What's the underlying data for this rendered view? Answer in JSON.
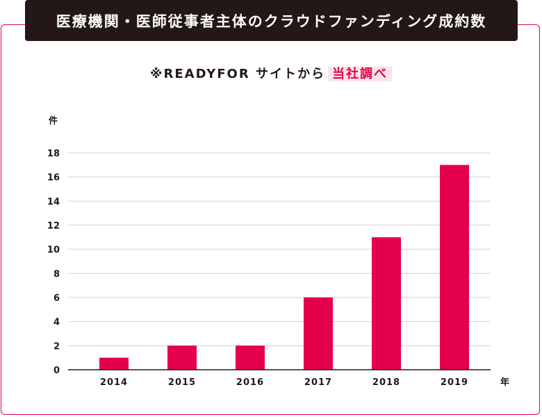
{
  "header": {
    "title": "医療機関・医師従事者主体のクラウドファンディング成約数",
    "source_prefix": "※READYFOR サイトから",
    "source_highlight": "当社調べ"
  },
  "colors": {
    "accent": "#e4004b",
    "title_bg": "#231815",
    "highlight_bg": "#fde3e8",
    "grid": "#cfcfcf"
  },
  "chart_data": {
    "type": "bar",
    "title": "医療機関・医師従事者主体のクラウドファンディング成約数",
    "categories": [
      "2014",
      "2015",
      "2016",
      "2017",
      "2018",
      "2019"
    ],
    "values": [
      1,
      2,
      2,
      6,
      11,
      17
    ],
    "ylabel": "件",
    "xlabel": "年",
    "ylim": [
      0,
      18
    ],
    "yticks": [
      0,
      2,
      4,
      6,
      8,
      10,
      12,
      14,
      16,
      18
    ],
    "grid": true,
    "legend": "none"
  }
}
